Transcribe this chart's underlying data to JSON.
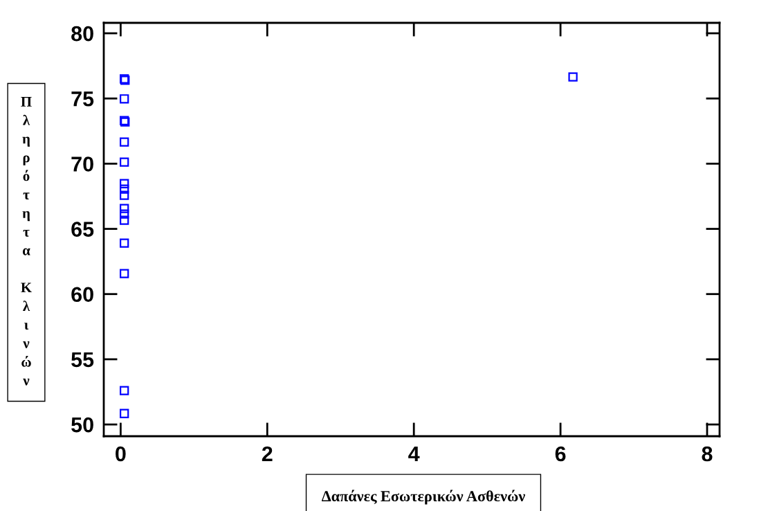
{
  "chart_data": {
    "type": "scatter",
    "xlabel": "Δαπάνες Εσωτερικών Ασθενών",
    "ylabel": "Πληρότητα Κλινών",
    "x": [
      0.05,
      0.06,
      0.05,
      0.05,
      0.06,
      0.05,
      0.05,
      0.05,
      0.05,
      0.05,
      0.05,
      0.05,
      0.05,
      0.05,
      0.05,
      0.05,
      0.05,
      6.17
    ],
    "series": [
      {
        "color": "#0000ff",
        "values": [
          76.5,
          76.4,
          74.97,
          73.3,
          73.2,
          71.66,
          70.12,
          68.47,
          68.05,
          67.57,
          66.56,
          66.14,
          65.66,
          63.91,
          61.57,
          52.6,
          50.84,
          76.65
        ]
      }
    ],
    "xlim": [
      -0.23,
      8.17
    ],
    "ylim": [
      49.1,
      80.8
    ],
    "xticks": [
      0,
      2,
      4,
      6,
      8
    ],
    "yticks": [
      50,
      55,
      60,
      65,
      70,
      75,
      80
    ],
    "marker": "square",
    "grid": false,
    "legend": false
  }
}
